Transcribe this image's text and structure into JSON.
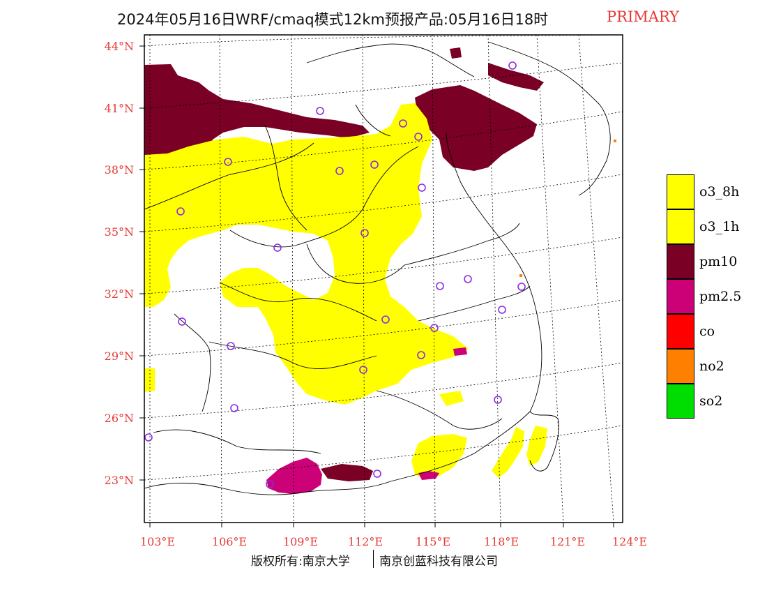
{
  "title": {
    "text": "2024年05月16日WRF/cmaq模式12km预报产品:05月16日18时",
    "tag": "PRIMARY"
  },
  "colors": {
    "o3_8h": "#ffff00",
    "o3_1h": "#ffff00",
    "pm10": "#7a0026",
    "pm25": "#cc0077",
    "co": "#ff0000",
    "no2": "#ff7f00",
    "so2": "#00dd00",
    "axis_label": "#e53935",
    "station": "#8a2be2"
  },
  "legend": [
    {
      "label": "o3_8h",
      "color": "#ffff00"
    },
    {
      "label": "o3_1h",
      "color": "#ffff00"
    },
    {
      "label": "pm10",
      "color": "#7a0026"
    },
    {
      "label": "pm2.5",
      "color": "#cc0077"
    },
    {
      "label": "co",
      "color": "#ff0000"
    },
    {
      "label": "no2",
      "color": "#ff7f00"
    },
    {
      "label": "so2",
      "color": "#00dd00"
    }
  ],
  "axes": {
    "lat_labels": [
      "44°N",
      "41°N",
      "38°N",
      "35°N",
      "32°N",
      "29°N",
      "26°N",
      "23°N"
    ],
    "lon_labels": [
      "103°E",
      "106°E",
      "109°E",
      "112°E",
      "115°E",
      "118°E",
      "121°E",
      "124°E"
    ]
  },
  "footer": {
    "left": "版权所有:南京大学",
    "right": "南京创蓝科技有限公司"
  }
}
